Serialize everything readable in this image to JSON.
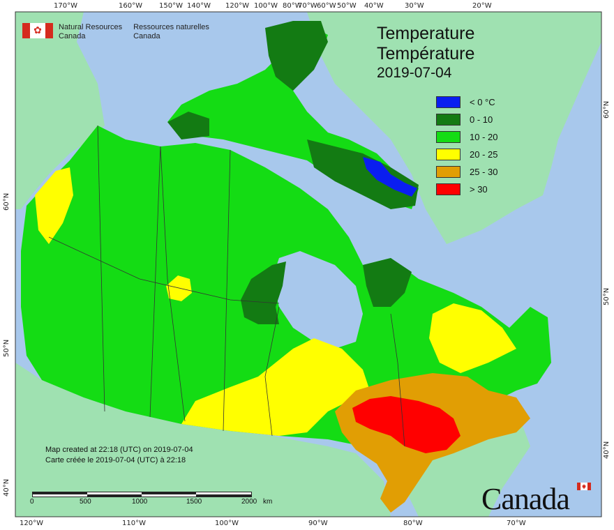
{
  "org": {
    "en_line1": "Natural Resources",
    "en_line2": "Canada",
    "fr_line1": "Ressources naturelles",
    "fr_line2": "Canada"
  },
  "title": {
    "en": "Temperature",
    "fr": "Température",
    "date": "2019-07-04"
  },
  "legend": [
    {
      "label": "< 0 °C",
      "color": "#0a1ef0"
    },
    {
      "label": "0 - 10",
      "color": "#137b13"
    },
    {
      "label": "10 - 20",
      "color": "#14dc14"
    },
    {
      "label": "20 - 25",
      "color": "#ffff00"
    },
    {
      "label": "25 - 30",
      "color": "#e19e04"
    },
    {
      "label": "> 30",
      "color": "#ff0000"
    }
  ],
  "credit": {
    "en": "Map created at 22:18 (UTC) on 2019-07-04",
    "fr": "Carte créée le 2019-07-04 (UTC) à 22:18"
  },
  "scale": {
    "ticks": [
      "0",
      "500",
      "1000",
      "1500",
      "2000"
    ],
    "unit": "km"
  },
  "wordmark": "Canada",
  "graticule": {
    "top": [
      "170°W",
      "160°W",
      "150°W",
      "140°W",
      "120°W",
      "100°W",
      "80°W",
      "70°W",
      "60°W",
      "50°W",
      "40°W",
      "30°W",
      "20°W"
    ],
    "bottom": [
      "120°W",
      "110°W",
      "100°W",
      "90°W",
      "80°W",
      "70°W"
    ],
    "left": [
      "60°N",
      "50°N",
      "40°N"
    ],
    "right": [
      "60°N",
      "50°N",
      "40°N"
    ]
  },
  "colors": {
    "water": "#a8c8ec",
    "outside_land": "#9fe1b1",
    "border": "#333333"
  }
}
